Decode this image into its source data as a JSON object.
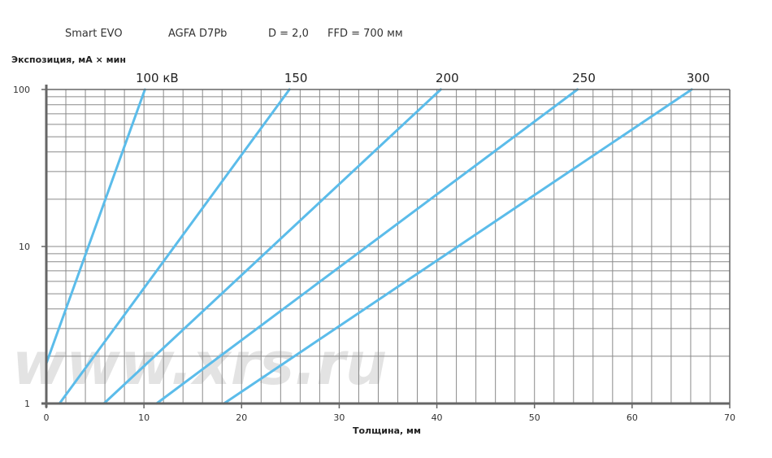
{
  "header": {
    "device": "Smart EVO",
    "film": "AGFA D7Pb",
    "density": "D = 2,0",
    "ffd": "FFD = 700 мм"
  },
  "watermark": "www.xrs.ru",
  "chart_data": {
    "type": "line",
    "title": "",
    "xlabel": "Толщина, мм",
    "ylabel": "Экспозиция, мА × мин",
    "xlim": [
      0,
      70
    ],
    "ylim": [
      1,
      100
    ],
    "yscale": "log",
    "x_ticks": [
      0,
      10,
      20,
      30,
      40,
      50,
      60,
      70
    ],
    "y_ticks": [
      1,
      10,
      100
    ],
    "grid": true,
    "line_color": "#5bbcea",
    "series": [
      {
        "name": "100 кВ",
        "points": [
          [
            0,
            1.8
          ],
          [
            10.1,
            100
          ]
        ]
      },
      {
        "name": "150",
        "points": [
          [
            1.35,
            1
          ],
          [
            24.9,
            100
          ]
        ]
      },
      {
        "name": "200",
        "points": [
          [
            5.9,
            1
          ],
          [
            40.4,
            100
          ]
        ]
      },
      {
        "name": "250",
        "points": [
          [
            11.3,
            1
          ],
          [
            54.4,
            100
          ]
        ]
      },
      {
        "name": "300",
        "points": [
          [
            18.2,
            1
          ],
          [
            66.1,
            100
          ]
        ]
      }
    ]
  }
}
